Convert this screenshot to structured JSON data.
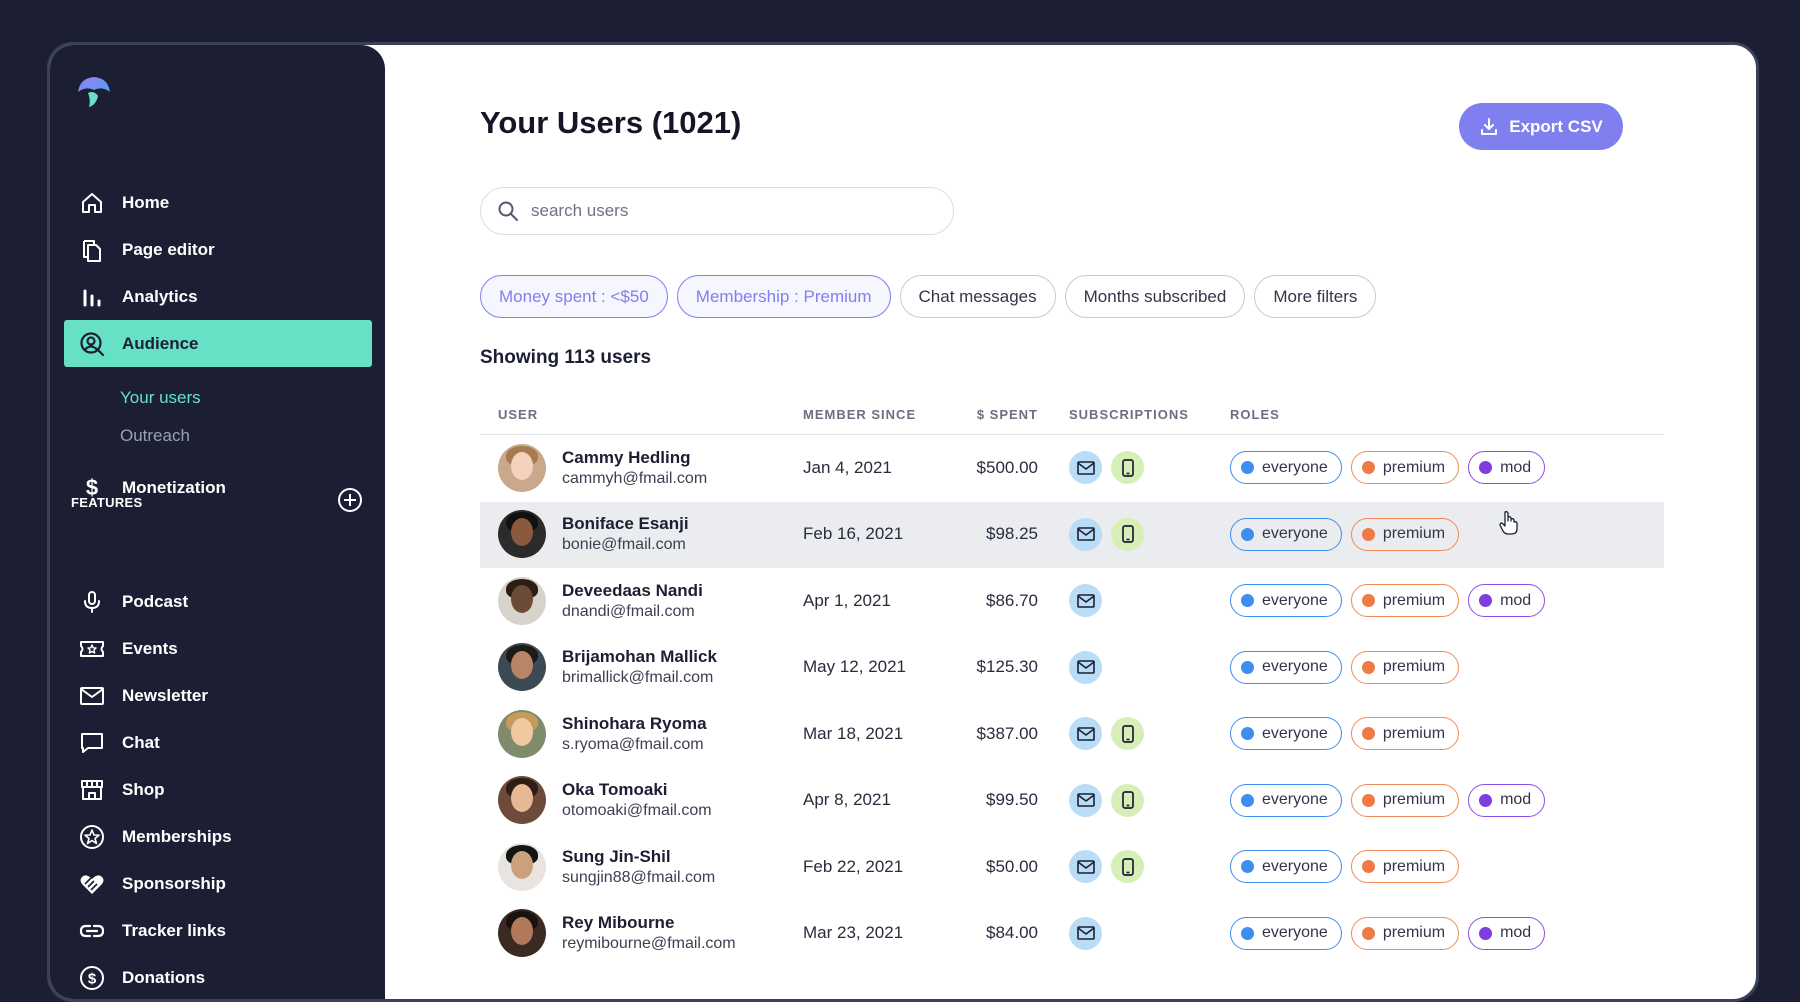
{
  "sidebar": {
    "nav": [
      {
        "label": "Home",
        "icon": "home-icon"
      },
      {
        "label": "Page editor",
        "icon": "pages-icon"
      },
      {
        "label": "Analytics",
        "icon": "bar-chart-icon"
      },
      {
        "label": "Audience",
        "icon": "audience-icon",
        "active": true
      }
    ],
    "audience_sub": [
      {
        "label": "Your users",
        "active": true
      },
      {
        "label": "Outreach"
      }
    ],
    "monetization": "Monetization",
    "features_label": "FEATURES",
    "features": [
      {
        "label": "Podcast",
        "icon": "microphone-icon"
      },
      {
        "label": "Events",
        "icon": "ticket-icon"
      },
      {
        "label": "Newsletter",
        "icon": "mail-icon"
      },
      {
        "label": "Chat",
        "icon": "chat-icon"
      },
      {
        "label": "Shop",
        "icon": "shop-icon"
      },
      {
        "label": "Memberships",
        "icon": "star-badge-icon"
      },
      {
        "label": "Sponsorship",
        "icon": "handshake-heart-icon"
      },
      {
        "label": "Tracker links",
        "icon": "link-icon"
      },
      {
        "label": "Donations",
        "icon": "dollar-circle-icon"
      }
    ]
  },
  "header": {
    "title": "Your Users (1021)",
    "export_label": "Export CSV"
  },
  "search": {
    "placeholder": "search users"
  },
  "filters": [
    {
      "label": "Money spent : <$50",
      "applied": true
    },
    {
      "label": "Membership : Premium",
      "applied": true
    },
    {
      "label": "Chat messages",
      "applied": false
    },
    {
      "label": "Months subscribed",
      "applied": false
    },
    {
      "label": "More filters",
      "applied": false
    }
  ],
  "showing": "Showing 113 users",
  "table": {
    "headers": {
      "user": "USER",
      "since": "MEMBER SINCE",
      "spent": "$ SPENT",
      "subs": "SUBSCRIPTIONS",
      "roles": "ROLES"
    },
    "rows": [
      {
        "name": "Cammy Hedling",
        "email": "cammyh@fmail.com",
        "since": "Jan 4, 2021",
        "spent": "$500.00",
        "subs": [
          "email",
          "sms"
        ],
        "roles": [
          "everyone",
          "premium",
          "mod"
        ]
      },
      {
        "name": "Boniface Esanji",
        "email": "bonie@fmail.com",
        "since": "Feb 16, 2021",
        "spent": "$98.25",
        "subs": [
          "email",
          "sms"
        ],
        "roles": [
          "everyone",
          "premium"
        ],
        "hover": true
      },
      {
        "name": "Deveedaas Nandi",
        "email": "dnandi@fmail.com",
        "since": "Apr 1, 2021",
        "spent": "$86.70",
        "subs": [
          "email"
        ],
        "roles": [
          "everyone",
          "premium",
          "mod"
        ]
      },
      {
        "name": "Brijamohan Mallick",
        "email": "brimallick@fmail.com",
        "since": "May 12, 2021",
        "spent": "$125.30",
        "subs": [
          "email"
        ],
        "roles": [
          "everyone",
          "premium"
        ]
      },
      {
        "name": "Shinohara Ryoma",
        "email": "s.ryoma@fmail.com",
        "since": "Mar 18, 2021",
        "spent": "$387.00",
        "subs": [
          "email",
          "sms"
        ],
        "roles": [
          "everyone",
          "premium"
        ]
      },
      {
        "name": "Oka Tomoaki",
        "email": "otomoaki@fmail.com",
        "since": "Apr 8, 2021",
        "spent": "$99.50",
        "subs": [
          "email",
          "sms"
        ],
        "roles": [
          "everyone",
          "premium",
          "mod"
        ]
      },
      {
        "name": "Sung Jin-Shil",
        "email": "sungjin88@fmail.com",
        "since": "Feb 22, 2021",
        "spent": "$50.00",
        "subs": [
          "email",
          "sms"
        ],
        "roles": [
          "everyone",
          "premium"
        ]
      },
      {
        "name": "Rey Mibourne",
        "email": "reymibourne@fmail.com",
        "since": "Mar 23, 2021",
        "spent": "$84.00",
        "subs": [
          "email"
        ],
        "roles": [
          "everyone",
          "premium",
          "mod"
        ]
      }
    ]
  },
  "colors": {
    "sidebar_bg": "#1c1f33",
    "accent_teal": "#67e1c5",
    "accent_purple": "#7f7ff0",
    "role_everyone": "#3d8ef0",
    "role_premium": "#f07a45",
    "role_mod": "#7d3de0"
  }
}
